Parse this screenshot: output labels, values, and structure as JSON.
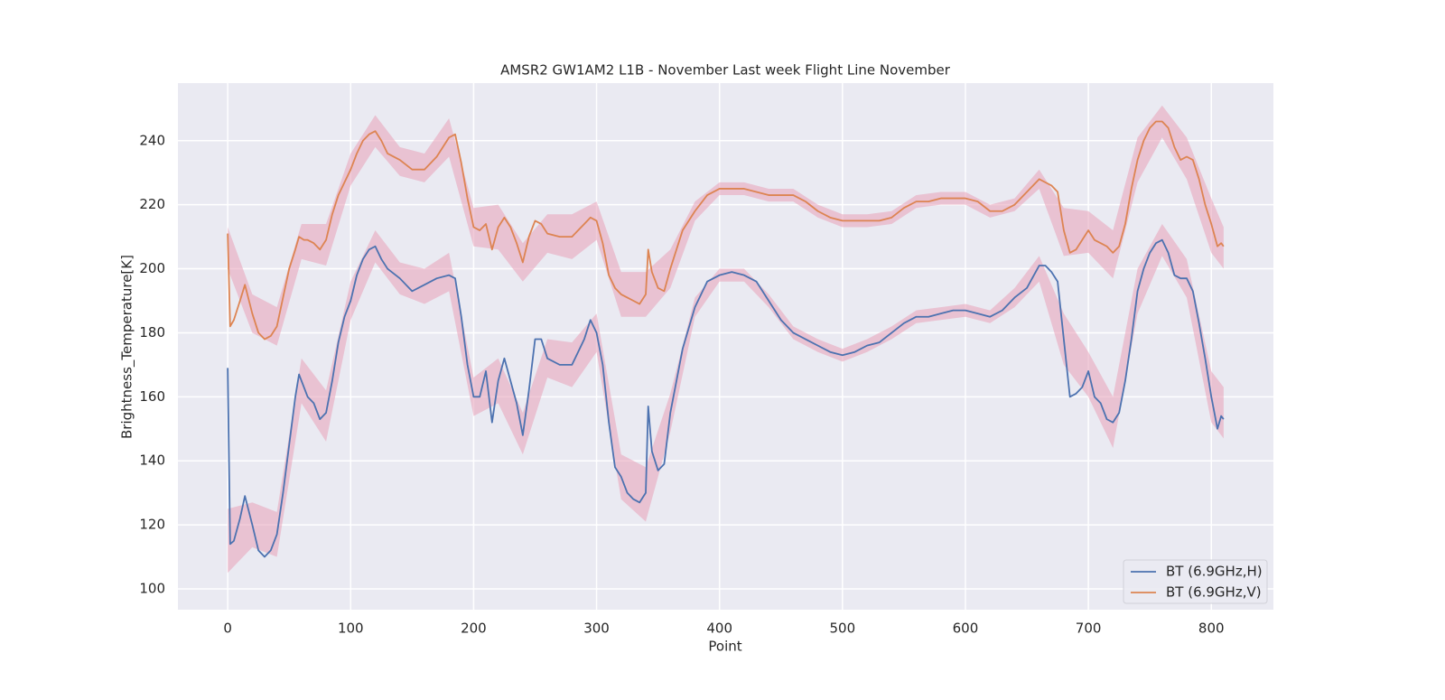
{
  "chart_data": {
    "type": "line",
    "title": "AMSR2 GW1AM2 L1B - November Last week Flight Line November",
    "x_label": "Point",
    "y_label": "Brightness_Temperature[K]",
    "xlim": [
      -40.5,
      850.5
    ],
    "ylim": [
      93.5,
      258
    ],
    "xticks": [
      0,
      100,
      200,
      300,
      400,
      500,
      600,
      700,
      800
    ],
    "yticks": [
      100,
      120,
      140,
      160,
      180,
      200,
      220,
      240
    ],
    "grid": true,
    "legend": "lower right",
    "band_color": "#e8a0b8",
    "x": [
      0,
      2,
      5,
      10,
      14,
      20,
      25,
      30,
      35,
      40,
      45,
      50,
      55,
      58,
      62,
      65,
      70,
      75,
      80,
      85,
      90,
      95,
      100,
      105,
      110,
      115,
      120,
      125,
      130,
      140,
      150,
      160,
      170,
      180,
      185,
      190,
      195,
      200,
      205,
      210,
      215,
      220,
      225,
      230,
      235,
      240,
      245,
      250,
      255,
      260,
      270,
      280,
      290,
      295,
      300,
      305,
      310,
      315,
      320,
      325,
      330,
      335,
      340,
      342,
      345,
      350,
      355,
      360,
      370,
      380,
      390,
      400,
      410,
      420,
      430,
      440,
      450,
      460,
      470,
      480,
      490,
      500,
      510,
      520,
      530,
      540,
      550,
      560,
      570,
      580,
      590,
      600,
      610,
      620,
      630,
      640,
      650,
      660,
      665,
      670,
      675,
      680,
      685,
      690,
      695,
      700,
      705,
      710,
      715,
      720,
      725,
      730,
      735,
      740,
      745,
      750,
      755,
      760,
      765,
      770,
      775,
      780,
      785,
      790,
      795,
      800,
      805,
      808,
      810
    ],
    "band_x": [
      0,
      20,
      40,
      60,
      80,
      100,
      120,
      140,
      160,
      180,
      200,
      220,
      240,
      260,
      280,
      300,
      320,
      340,
      360,
      380,
      400,
      420,
      440,
      460,
      480,
      500,
      520,
      540,
      560,
      580,
      600,
      620,
      640,
      660,
      680,
      700,
      720,
      740,
      760,
      780,
      800,
      810
    ],
    "series": [
      {
        "name": "BT (6.9GHz,H)",
        "color": "#4c72b0",
        "values": [
          169,
          114,
          115,
          122,
          129,
          120,
          112,
          110,
          112,
          117,
          130,
          145,
          160,
          167,
          163,
          160,
          158,
          153,
          155,
          165,
          177,
          185,
          190,
          198,
          203,
          206,
          207,
          203,
          200,
          197,
          193,
          195,
          197,
          198,
          197,
          185,
          170,
          160,
          160,
          168,
          152,
          165,
          172,
          165,
          158,
          148,
          162,
          178,
          178,
          172,
          170,
          170,
          178,
          184,
          180,
          170,
          152,
          138,
          135,
          130,
          128,
          127,
          130,
          157,
          143,
          137,
          139,
          155,
          175,
          188,
          196,
          198,
          199,
          198,
          196,
          190,
          184,
          180,
          178,
          176,
          174,
          173,
          174,
          176,
          177,
          180,
          183,
          185,
          185,
          186,
          187,
          187,
          186,
          185,
          187,
          191,
          194,
          201,
          201,
          199,
          196,
          178,
          160,
          161,
          163,
          168,
          160,
          158,
          153,
          152,
          155,
          165,
          178,
          193,
          200,
          205,
          208,
          209,
          205,
          198,
          197,
          197,
          193,
          183,
          172,
          160,
          150,
          154,
          153
        ],
        "lower": [
          105,
          113,
          110,
          158,
          146,
          184,
          202,
          192,
          189,
          193,
          154,
          158,
          142,
          166,
          163,
          174,
          128,
          121,
          149,
          185,
          196,
          196,
          188,
          178,
          174,
          171,
          174,
          178,
          183,
          184,
          185,
          183,
          188,
          196,
          170,
          160,
          144,
          186,
          204,
          191,
          152,
          147
        ],
        "upper": [
          125,
          127,
          124,
          172,
          162,
          196,
          212,
          202,
          200,
          205,
          166,
          172,
          155,
          178,
          177,
          186,
          142,
          138,
          161,
          191,
          200,
          200,
          192,
          182,
          178,
          175,
          178,
          182,
          187,
          188,
          189,
          187,
          194,
          204,
          186,
          174,
          160,
          200,
          214,
          203,
          168,
          163
        ]
      },
      {
        "name": "BT (6.9GHz,V)",
        "color": "#dd8452",
        "values": [
          211,
          182,
          184,
          190,
          195,
          186,
          180,
          178,
          179,
          182,
          191,
          200,
          206,
          210,
          209,
          209,
          208,
          206,
          209,
          217,
          223,
          227,
          231,
          236,
          240,
          242,
          243,
          240,
          236,
          234,
          231,
          231,
          235,
          241,
          242,
          233,
          222,
          213,
          212,
          214,
          206,
          213,
          216,
          213,
          208,
          202,
          210,
          215,
          214,
          211,
          210,
          210,
          214,
          216,
          215,
          208,
          198,
          194,
          192,
          191,
          190,
          189,
          192,
          206,
          199,
          194,
          193,
          200,
          212,
          218,
          223,
          225,
          225,
          225,
          224,
          223,
          223,
          223,
          221,
          218,
          216,
          215,
          215,
          215,
          215,
          216,
          219,
          221,
          221,
          222,
          222,
          222,
          221,
          218,
          218,
          220,
          224,
          228,
          227,
          226,
          224,
          212,
          205,
          206,
          209,
          212,
          209,
          208,
          207,
          205,
          207,
          214,
          225,
          234,
          240,
          244,
          246,
          246,
          244,
          238,
          234,
          235,
          234,
          228,
          220,
          214,
          207,
          208,
          207
        ],
        "lower": [
          200,
          180,
          176,
          203,
          201,
          226,
          238,
          229,
          227,
          235,
          207,
          206,
          196,
          205,
          203,
          209,
          185,
          185,
          194,
          215,
          223,
          223,
          221,
          221,
          216,
          213,
          213,
          214,
          219,
          220,
          220,
          216,
          218,
          225,
          204,
          205,
          197,
          227,
          241,
          228,
          205,
          200
        ],
        "upper": [
          213,
          192,
          188,
          214,
          214,
          236,
          248,
          238,
          236,
          247,
          219,
          220,
          208,
          217,
          217,
          221,
          199,
          199,
          206,
          221,
          227,
          227,
          225,
          225,
          220,
          217,
          217,
          218,
          223,
          224,
          224,
          220,
          222,
          231,
          219,
          218,
          212,
          241,
          251,
          241,
          222,
          213
        ]
      }
    ]
  }
}
